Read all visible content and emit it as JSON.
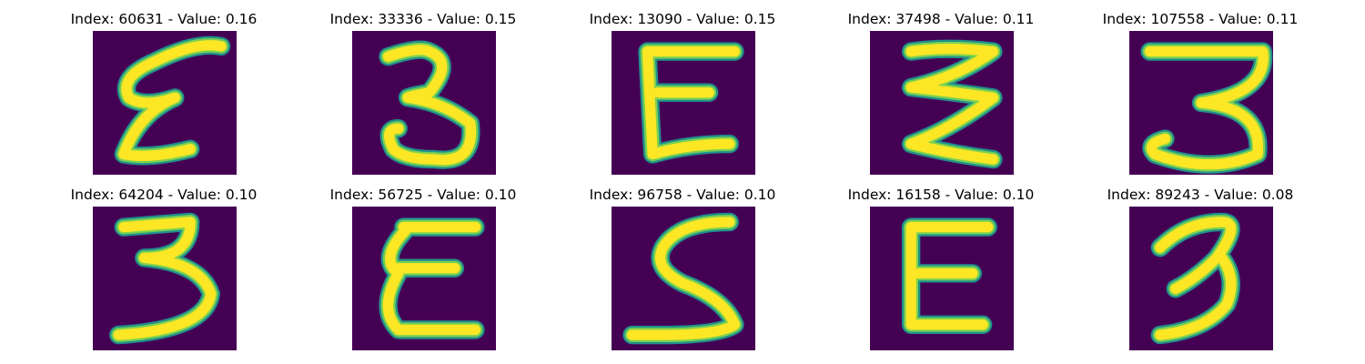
{
  "colors": {
    "background": "#440154",
    "stroke_outer": "#21918c",
    "stroke_mid": "#7ad151",
    "stroke_core": "#fde725"
  },
  "samples": [
    {
      "title": "Index: 60631 - Value: 0.16",
      "index": 60631,
      "value": 0.16,
      "glyph": "handwritten-sigma"
    },
    {
      "title": "Index: 33336 - Value: 0.15",
      "index": 33336,
      "value": 0.15,
      "glyph": "handwritten-3"
    },
    {
      "title": "Index: 13090 - Value: 0.15",
      "index": 13090,
      "value": 0.15,
      "glyph": "handwritten-E"
    },
    {
      "title": "Index: 37498 - Value: 0.11",
      "index": 37498,
      "value": 0.11,
      "glyph": "handwritten-zigzag"
    },
    {
      "title": "Index: 107558 - Value: 0.11",
      "index": 107558,
      "value": 0.11,
      "glyph": "handwritten-3"
    },
    {
      "title": "Index: 64204 - Value: 0.10",
      "index": 64204,
      "value": 0.1,
      "glyph": "handwritten-3"
    },
    {
      "title": "Index: 56725 - Value: 0.10",
      "index": 56725,
      "value": 0.1,
      "glyph": "handwritten-E"
    },
    {
      "title": "Index: 96758 - Value: 0.10",
      "index": 96758,
      "value": 0.1,
      "glyph": "handwritten-S"
    },
    {
      "title": "Index: 16158 - Value: 0.10",
      "index": 16158,
      "value": 0.1,
      "glyph": "handwritten-E"
    },
    {
      "title": "Index: 89243 - Value: 0.08",
      "index": 89243,
      "value": 0.08,
      "glyph": "handwritten-3"
    }
  ]
}
